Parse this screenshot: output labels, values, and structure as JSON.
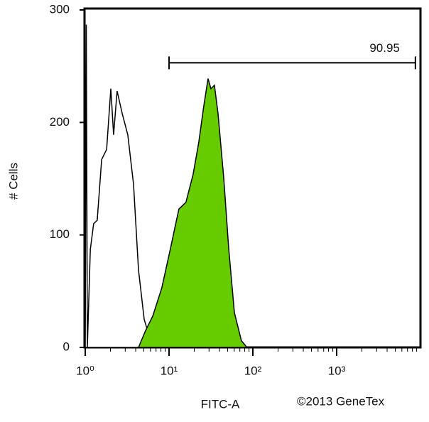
{
  "chart_data": {
    "type": "area",
    "x_label": "FITC-A",
    "y_label": "# Cells",
    "credit": "©2013 GeneTex",
    "xscale": "log",
    "xlim": [
      1,
      10000
    ],
    "ylim": [
      0,
      300
    ],
    "xticks": [
      {
        "value": 1,
        "label": "10⁰"
      },
      {
        "value": 10,
        "label": "10¹"
      },
      {
        "value": 100,
        "label": "10²"
      },
      {
        "value": 1000,
        "label": "10³"
      }
    ],
    "xminorticks": [
      2,
      3,
      4,
      5,
      6,
      7,
      8,
      9,
      20,
      30,
      40,
      50,
      60,
      70,
      80,
      90,
      200,
      300,
      400,
      500,
      600,
      700,
      800,
      900,
      2000,
      3000,
      4000,
      5000,
      6000,
      7000,
      8000,
      9000
    ],
    "yticks": [
      0,
      100,
      200,
      300
    ],
    "gate": {
      "label": "90.95",
      "x": [
        10,
        8700
      ],
      "y": 253
    },
    "series": [
      {
        "color": "#ffffff",
        "x": [
          1,
          1.03,
          1.06,
          1.15,
          1.26,
          1.39,
          1.57,
          1.8,
          2.02,
          2.18,
          2.4,
          2.76,
          3.22,
          3.77,
          4.32,
          5.05,
          6.02,
          7.3
        ],
        "values": [
          0,
          287,
          0,
          87,
          110,
          113,
          167,
          176,
          230,
          189,
          228,
          208,
          189,
          145,
          69,
          25,
          6,
          0
        ]
      },
      {
        "color": "#66cc00",
        "x": [
          4.32,
          5.25,
          6.4,
          8.2,
          10.4,
          13.1,
          15.9,
          19.4,
          22.7,
          25.9,
          29.2,
          31.6,
          34.8,
          38.4,
          44.9,
          51.5,
          60.2,
          73,
          85
        ],
        "values": [
          0,
          15,
          28,
          53,
          88,
          123,
          129,
          154,
          183,
          214,
          239,
          230,
          233,
          208,
          151,
          88,
          31,
          6,
          0
        ]
      }
    ]
  }
}
